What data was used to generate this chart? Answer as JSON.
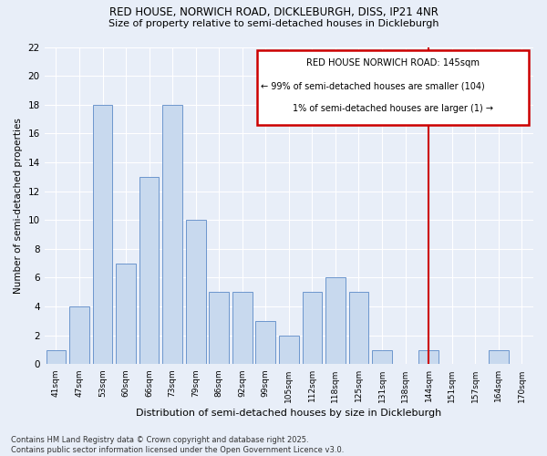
{
  "title1": "RED HOUSE, NORWICH ROAD, DICKLEBURGH, DISS, IP21 4NR",
  "title2": "Size of property relative to semi-detached houses in Dickleburgh",
  "xlabel": "Distribution of semi-detached houses by size in Dickleburgh",
  "ylabel": "Number of semi-detached properties",
  "categories": [
    "41sqm",
    "47sqm",
    "53sqm",
    "60sqm",
    "66sqm",
    "73sqm",
    "79sqm",
    "86sqm",
    "92sqm",
    "99sqm",
    "105sqm",
    "112sqm",
    "118sqm",
    "125sqm",
    "131sqm",
    "138sqm",
    "144sqm",
    "151sqm",
    "157sqm",
    "164sqm",
    "170sqm"
  ],
  "values": [
    1,
    4,
    18,
    7,
    13,
    18,
    10,
    5,
    5,
    3,
    2,
    5,
    6,
    5,
    1,
    0,
    1,
    0,
    0,
    1,
    0
  ],
  "bar_color": "#c8d9ee",
  "bar_edgecolor": "#5b8ac7",
  "marker_index": 16,
  "marker_label": "RED HOUSE NORWICH ROAD: 145sqm",
  "annotation_line1": "← 99% of semi-detached houses are smaller (104)",
  "annotation_line2": "1% of semi-detached houses are larger (1) →",
  "vline_color": "#cc0000",
  "annotation_box_color": "#cc0000",
  "ylim": [
    0,
    22
  ],
  "yticks": [
    0,
    2,
    4,
    6,
    8,
    10,
    12,
    14,
    16,
    18,
    20,
    22
  ],
  "footer1": "Contains HM Land Registry data © Crown copyright and database right 2025.",
  "footer2": "Contains public sector information licensed under the Open Government Licence v3.0.",
  "bg_color": "#e8eef8",
  "grid_color": "#ffffff"
}
